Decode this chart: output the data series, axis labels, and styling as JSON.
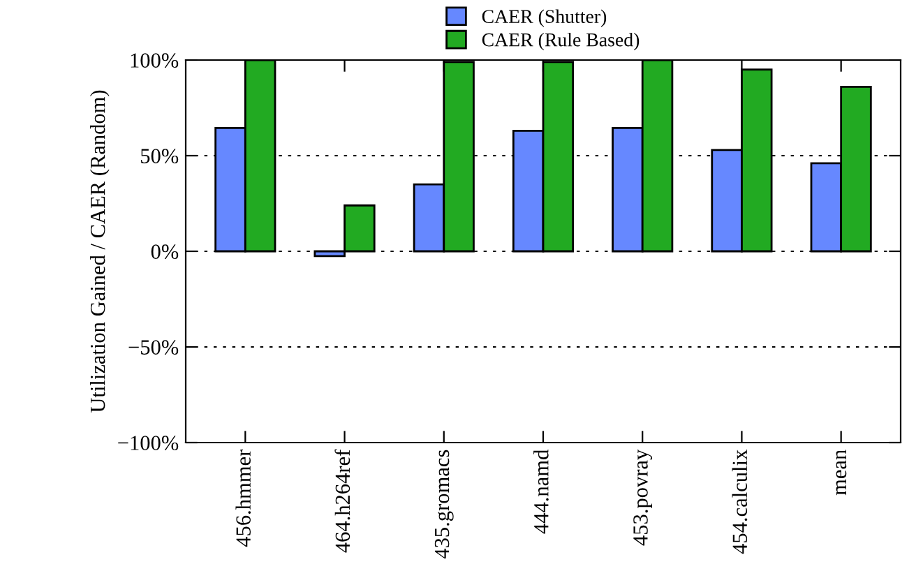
{
  "chart_data": {
    "type": "bar",
    "ylabel": "Utilization Gained / CAER (Random)",
    "categories": [
      "456.hmmer",
      "464.h264ref",
      "435.gromacs",
      "444.namd",
      "453.povray",
      "454.calculix",
      "mean"
    ],
    "series": [
      {
        "name": "CAER (Shutter)",
        "color": "#6688ff",
        "values": [
          64.5,
          -2.5,
          35,
          63,
          64.5,
          53,
          46
        ]
      },
      {
        "name": "CAER (Rule Based)",
        "color": "#22aa22",
        "values": [
          100,
          24,
          99,
          99,
          100,
          95,
          86
        ]
      }
    ],
    "ylim": [
      -100,
      100
    ],
    "yticks": [
      {
        "value": -100,
        "label": "−100%"
      },
      {
        "value": -50,
        "label": "−50%"
      },
      {
        "value": 0,
        "label": "0%"
      },
      {
        "value": 50,
        "label": "50%"
      },
      {
        "value": 100,
        "label": "100%"
      }
    ],
    "grid": "y",
    "legend": "top"
  }
}
